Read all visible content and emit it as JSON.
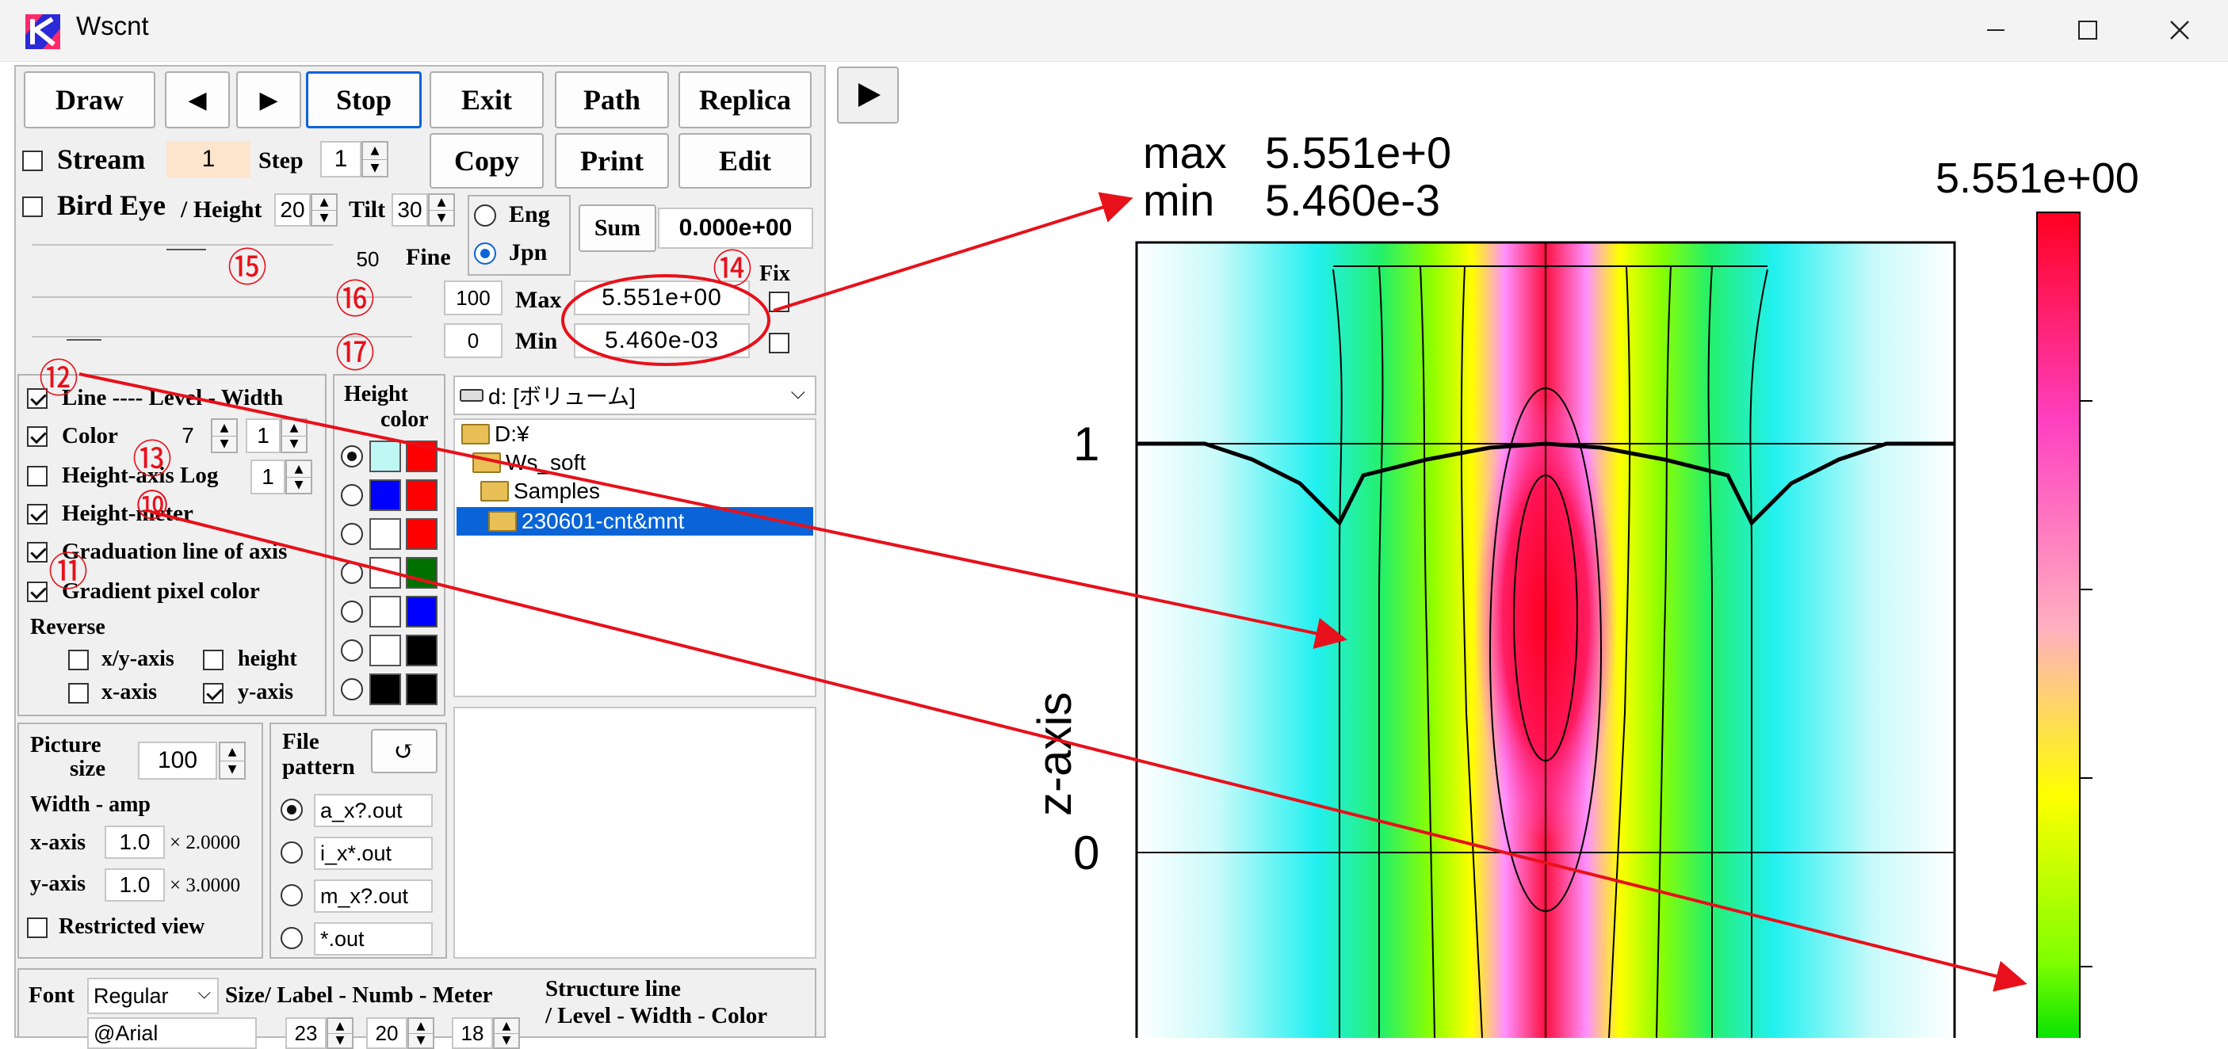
{
  "window": {
    "title": "Wscnt",
    "minimize_glyph": "—",
    "maximize_glyph": "☐",
    "close_glyph": "✕"
  },
  "toolbar": {
    "draw": "Draw",
    "prev": "◀",
    "next": "▶",
    "stop": "Stop",
    "exit": "Exit",
    "path": "Path",
    "replica": "Replica",
    "copy": "Copy",
    "print": "Print",
    "edit": "Edit",
    "play": "▶"
  },
  "stream": {
    "label": "Stream",
    "value": "1",
    "step_label": "Step",
    "step_value": "1"
  },
  "bird_eye": {
    "label": "Bird Eye",
    "height_label": "/ Height",
    "height_value": "20",
    "tilt_label": "Tilt",
    "tilt_value": "30"
  },
  "language": {
    "eng": "Eng",
    "jpn": "Jpn"
  },
  "sum": {
    "label": "Sum",
    "value": "0.000e+00"
  },
  "fine": {
    "value": "50",
    "label": "Fine"
  },
  "fix_label": "Fix",
  "max": {
    "slider_value": "100",
    "label": "Max",
    "value": "5.551e+00"
  },
  "min": {
    "slider_value": "0",
    "label": "Min",
    "value": "5.460e-03"
  },
  "options": {
    "line_label": "Line ---- Level - Width",
    "color_label": "Color",
    "color_level": "7",
    "color_width": "1",
    "height_axis_log_label": "Height-axis Log",
    "height_axis_log_value": "1",
    "height_meter_label": "Height-meter",
    "graduation_label": "Graduation line of axis",
    "gradient_label": "Gradient pixel color",
    "reverse_label": "Reverse",
    "xy_axis_label": "x/y-axis",
    "height_label": "height",
    "x_axis_label": "x-axis",
    "y_axis_label": "y-axis"
  },
  "height_color": {
    "title_line1": "Height",
    "title_line2": "color",
    "rows": [
      {
        "left": "#bff7f5",
        "right": "#ff0000"
      },
      {
        "left": "#0000ff",
        "right": "#ff0000"
      },
      {
        "left": "#ffffff",
        "right": "#ff0000"
      },
      {
        "left": "#ffffff",
        "right": "#007000"
      },
      {
        "left": "#ffffff",
        "right": "#0000ff"
      },
      {
        "left": "#ffffff",
        "right": "#000000"
      },
      {
        "left": "#000000",
        "right": "#000000"
      }
    ]
  },
  "drive": {
    "value": "d: [ボリューム]"
  },
  "tree": [
    {
      "label": "D:¥"
    },
    {
      "label": "Ws_soft"
    },
    {
      "label": "Samples"
    },
    {
      "label": "230601-cnt&mnt"
    }
  ],
  "picture": {
    "size_label_1": "Picture",
    "size_label_2": "size",
    "size_value": "100",
    "width_amp_label": "Width - amp",
    "x_axis_label": "x-axis",
    "x_value": "1.0",
    "x_mult": "× 2.0000",
    "y_axis_label": "y-axis",
    "y_value": "1.0",
    "y_mult": "× 3.0000",
    "restricted_label": "Restricted view"
  },
  "file_pattern": {
    "label_1": "File",
    "label_2": "pattern",
    "refresh": "↺",
    "options": [
      "a_x?.out",
      "i_x*.out",
      "m_x?.out",
      "*.out"
    ]
  },
  "font_row": {
    "font_label": "Font",
    "font_value": "Regular",
    "size_label": "Size/ Label - Numb - Meter",
    "font_name": "@Arial",
    "label_size": "23",
    "numb_size": "20",
    "meter_size": "18",
    "structure_line_1": "Structure line",
    "structure_line_2": "/ Level - Width - Color"
  },
  "annotations": [
    "⑫",
    "⑬",
    "⑩",
    "⑪",
    "⑭",
    "⑮",
    "⑯",
    "⑰"
  ],
  "plot": {
    "max_label": "max",
    "max_value": "5.551e+0",
    "min_label": "min",
    "min_value": "5.460e-3",
    "colorbar_max": "5.551e+00",
    "ylabel": "z-axis",
    "ticks": [
      "1",
      "0"
    ],
    "colors": {
      "annotation": "#e8101a",
      "accent": "#0a64d8",
      "selection": "#0a64d8",
      "stream_field": "#fde4cc"
    }
  }
}
